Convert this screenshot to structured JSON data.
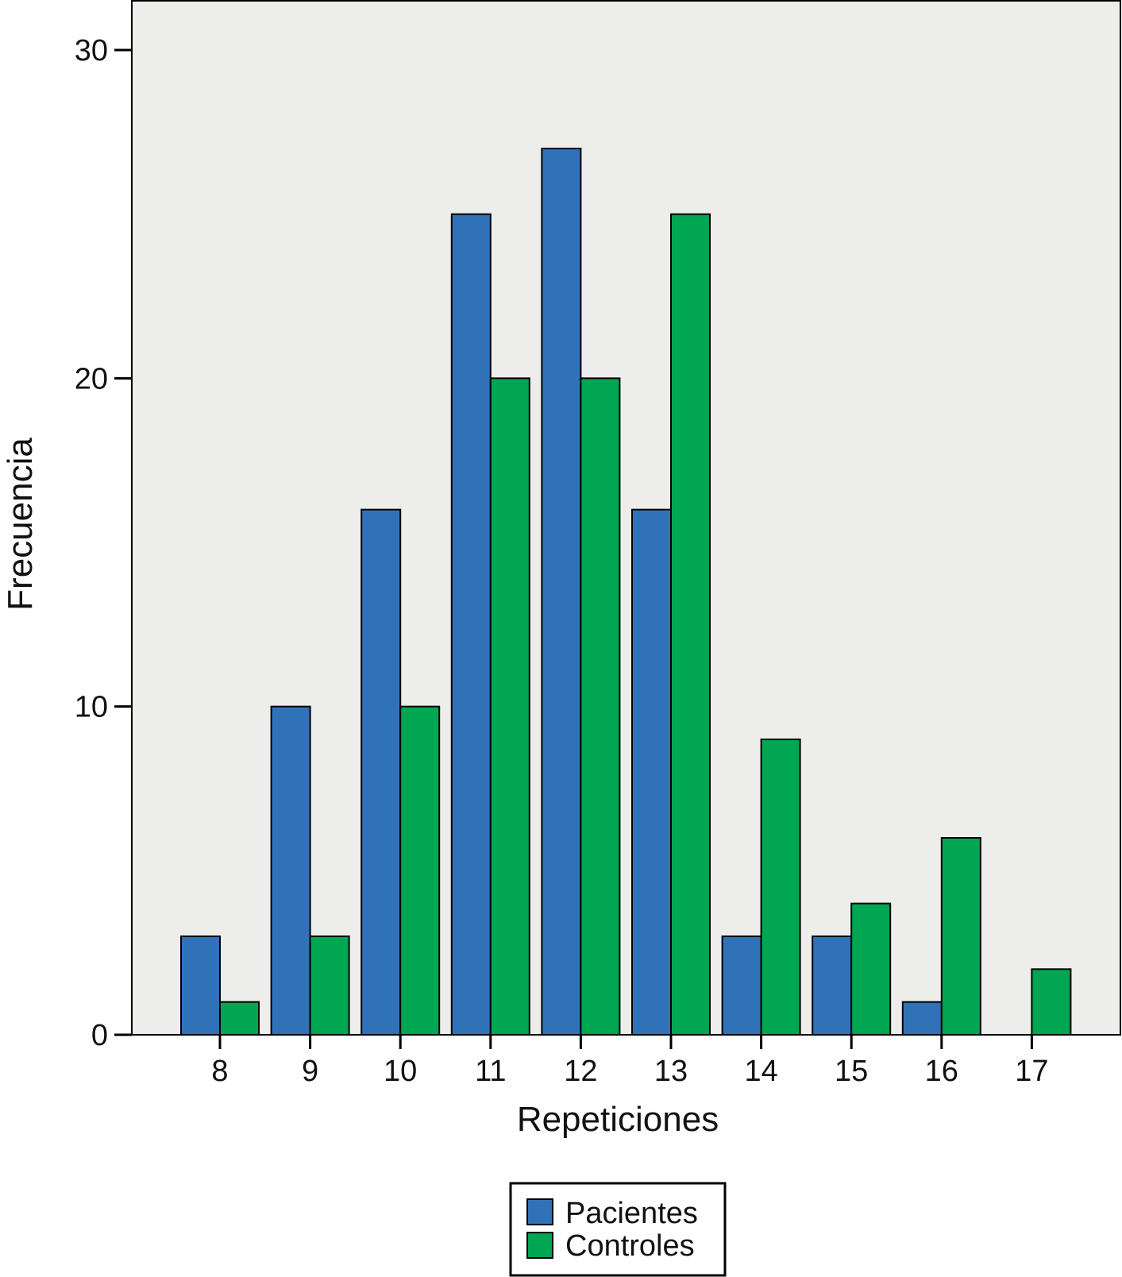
{
  "chart_data": {
    "type": "bar",
    "xlabel": "Repeticiones",
    "ylabel": "Frecuencia",
    "categories": [
      "8",
      "9",
      "10",
      "11",
      "12",
      "13",
      "14",
      "15",
      "16",
      "17"
    ],
    "series": [
      {
        "name": "Pacientes",
        "values": [
          3,
          10,
          16,
          25,
          27,
          16,
          3,
          3,
          1,
          0
        ]
      },
      {
        "name": "Controles",
        "values": [
          1,
          3,
          10,
          20,
          20,
          25,
          9,
          4,
          6,
          2
        ]
      }
    ],
    "ylim": [
      0,
      31.5
    ],
    "yticks": [
      0,
      10,
      20,
      30
    ],
    "grid": false,
    "legend": "bottom-center",
    "colors": {
      "Pacientes": "#2f72b8",
      "Controles": "#00a651",
      "plot_background": "#ededeb"
    }
  }
}
